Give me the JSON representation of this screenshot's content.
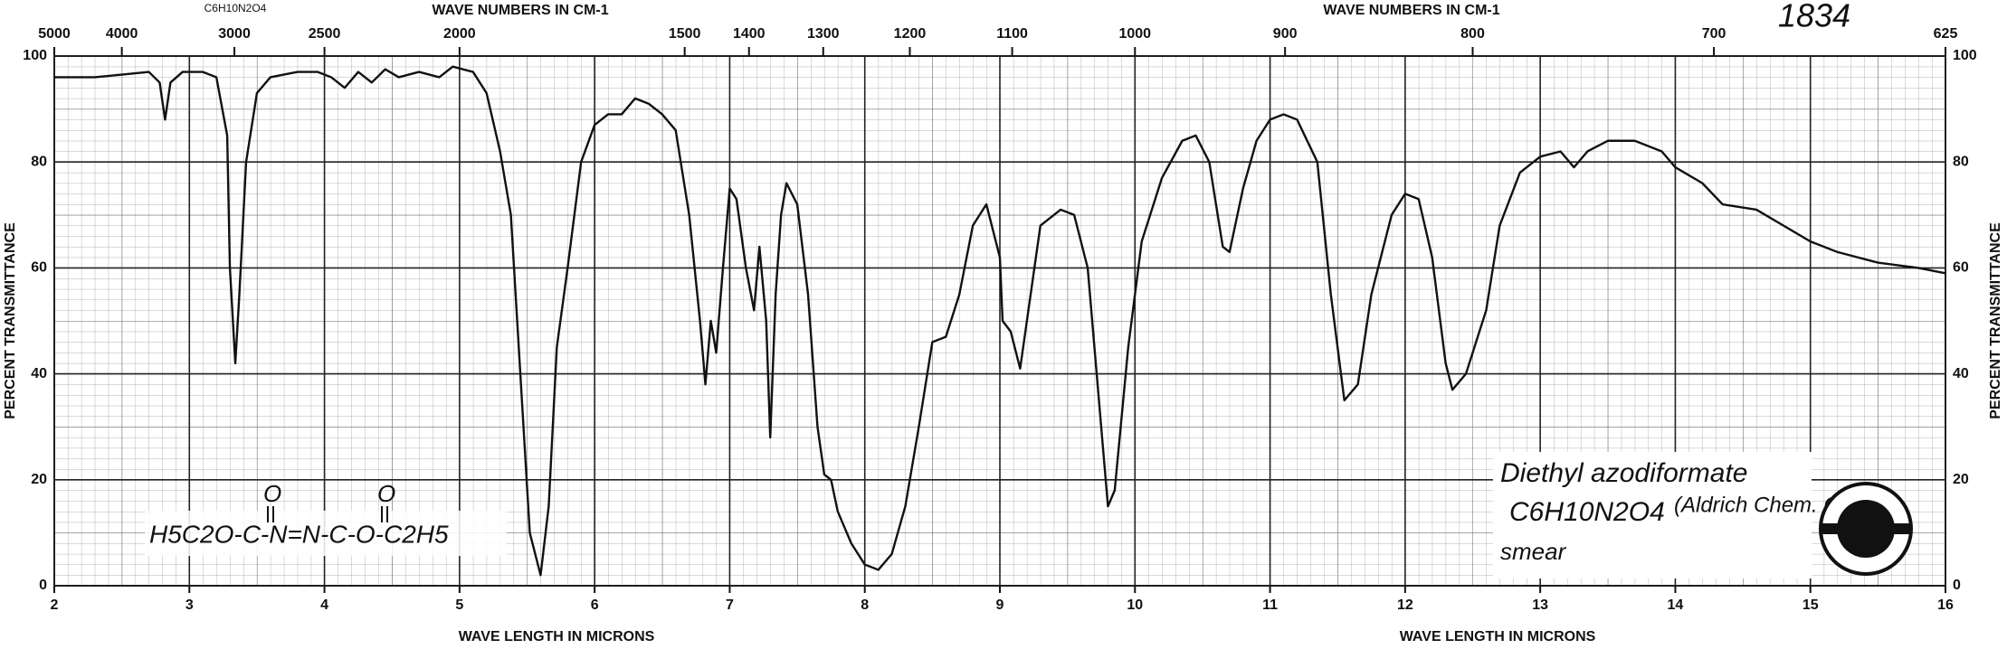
{
  "chart_data": {
    "type": "line",
    "header_formula": "C6H10N2O4",
    "spectrum_number": "1834",
    "x_label": "WAVE LENGTH IN MICRONS",
    "x2_label": "WAVE NUMBERS IN CM-1",
    "y_label": "PERCENT TRANSMITTANCE",
    "xlim": [
      2,
      16
    ],
    "ylim": [
      0,
      100
    ],
    "xticks": [
      2,
      3,
      4,
      5,
      6,
      7,
      8,
      9,
      10,
      11,
      12,
      13,
      14,
      15,
      16
    ],
    "yticks": [
      0,
      20,
      40,
      60,
      80,
      100
    ],
    "x2ticks": [
      5000,
      4000,
      3000,
      2500,
      2000,
      1500,
      1400,
      1300,
      1200,
      1100,
      1000,
      900,
      800,
      700,
      625
    ],
    "grid": true,
    "x": [
      2.0,
      2.3,
      2.5,
      2.7,
      2.78,
      2.82,
      2.86,
      2.95,
      3.1,
      3.2,
      3.28,
      3.3,
      3.34,
      3.37,
      3.42,
      3.5,
      3.6,
      3.8,
      3.95,
      4.05,
      4.15,
      4.25,
      4.35,
      4.45,
      4.55,
      4.7,
      4.85,
      4.95,
      5.1,
      5.2,
      5.3,
      5.38,
      5.45,
      5.52,
      5.6,
      5.66,
      5.72,
      5.8,
      5.9,
      6.0,
      6.1,
      6.2,
      6.3,
      6.4,
      6.5,
      6.6,
      6.7,
      6.78,
      6.82,
      6.86,
      6.9,
      6.95,
      7.0,
      7.05,
      7.12,
      7.18,
      7.22,
      7.27,
      7.3,
      7.34,
      7.38,
      7.42,
      7.5,
      7.58,
      7.65,
      7.7,
      7.75,
      7.8,
      7.9,
      8.0,
      8.1,
      8.2,
      8.3,
      8.4,
      8.5,
      8.6,
      8.7,
      8.8,
      8.9,
      9.0,
      9.02,
      9.08,
      9.1,
      9.15,
      9.2,
      9.3,
      9.45,
      9.55,
      9.65,
      9.75,
      9.8,
      9.85,
      9.95,
      10.05,
      10.2,
      10.35,
      10.45,
      10.55,
      10.65,
      10.7,
      10.8,
      10.9,
      11.0,
      11.1,
      11.2,
      11.35,
      11.45,
      11.55,
      11.65,
      11.75,
      11.9,
      12.0,
      12.1,
      12.2,
      12.3,
      12.35,
      12.45,
      12.6,
      12.7,
      12.85,
      13.0,
      13.15,
      13.25,
      13.35,
      13.5,
      13.7,
      13.9,
      14.0,
      14.2,
      14.35,
      14.6,
      14.8,
      15.0,
      15.2,
      15.5,
      15.8,
      16.0
    ],
    "series": [
      {
        "color": "#111111",
        "values": [
          96,
          96,
          96.5,
          97,
          95,
          88,
          95,
          97,
          97,
          96,
          85,
          60,
          42,
          55,
          80,
          93,
          96,
          97,
          97,
          96,
          94,
          97,
          95,
          97.5,
          96,
          97,
          96,
          98,
          97,
          93,
          82,
          70,
          40,
          10,
          2,
          15,
          45,
          60,
          80,
          87,
          89,
          89,
          92,
          91,
          89,
          86,
          70,
          50,
          38,
          50,
          44,
          60,
          75,
          73,
          60,
          52,
          64,
          50,
          28,
          55,
          70,
          76,
          72,
          55,
          30,
          21,
          20,
          14,
          8,
          4,
          3,
          6,
          15,
          30,
          46,
          47,
          55,
          68,
          72,
          62,
          50,
          48,
          46,
          41,
          50,
          68,
          71,
          70,
          60,
          30,
          15,
          18,
          45,
          65,
          77,
          84,
          85,
          80,
          64,
          63,
          75,
          84,
          88,
          89,
          88,
          80,
          55,
          35,
          38,
          55,
          70,
          74,
          73,
          62,
          42,
          37,
          40,
          52,
          68,
          78,
          81,
          82,
          79,
          82,
          84,
          84,
          82,
          79,
          76,
          72,
          71,
          68,
          65,
          63,
          61,
          60,
          59
        ]
      }
    ],
    "annotations": {
      "name": "Diethyl azodiformate",
      "formula": "C6H10N2O4",
      "source": "(Aldrich Chem. Co)",
      "method": "smear",
      "structure": "H5C2O-C-N=N-C-O-C2H5",
      "carbonyl_oxygens": [
        "O",
        "O"
      ]
    }
  }
}
